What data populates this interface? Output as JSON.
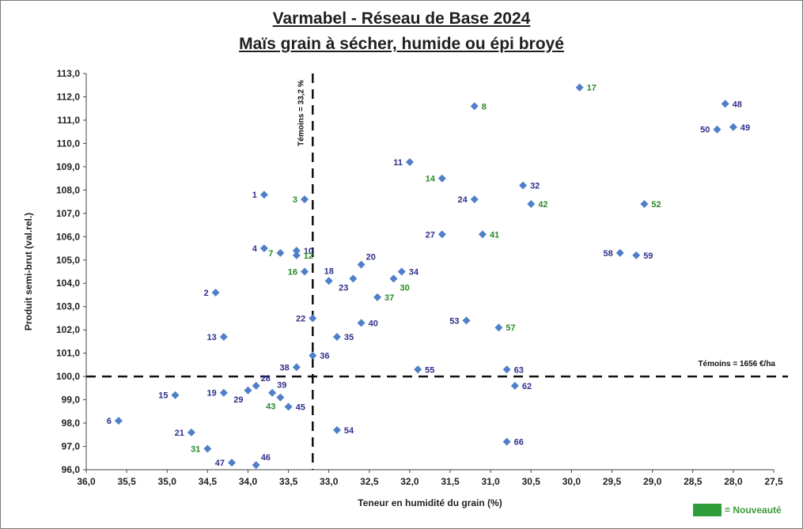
{
  "title": "Varmabel - Réseau de Base 2024",
  "subtitle": "Maïs grain à sécher, humide ou épi broyé",
  "legend": {
    "label": "= Nouveauté",
    "color": "#2f9e3a"
  },
  "chart_data": {
    "type": "scatter",
    "title": "Varmabel - Réseau de Base 2024",
    "subtitle": "Maïs grain à sécher, humide ou épi broyé",
    "xlabel": "Teneur en humidité du grain (%)",
    "ylabel": "Produit semi-brut (val.rel.)",
    "xlim": [
      36.0,
      27.5
    ],
    "x_reversed": true,
    "ylim": [
      96.0,
      113.0
    ],
    "x_ticks": [
      "36,0",
      "35,5",
      "35,0",
      "34,5",
      "34,0",
      "33,5",
      "33,0",
      "32,5",
      "32,0",
      "31,5",
      "31,0",
      "30,5",
      "30,0",
      "29,5",
      "29,0",
      "28,5",
      "28,0",
      "27,5"
    ],
    "y_ticks": [
      "96,0",
      "97,0",
      "98,0",
      "99,0",
      "100,0",
      "101,0",
      "102,0",
      "103,0",
      "104,0",
      "105,0",
      "106,0",
      "107,0",
      "108,0",
      "109,0",
      "110,0",
      "111,0",
      "112,0",
      "113,0"
    ],
    "grid": false,
    "marker_color": "#4f7fc8",
    "label_colors": {
      "standard": "#2e2f8c",
      "new": "#2a8a2a"
    },
    "reference_lines": [
      {
        "axis": "x",
        "value": 33.2,
        "label": "Témoins = 33,2 %"
      },
      {
        "axis": "y",
        "value": 100.0,
        "label": "Témoins = 1656 €/ha"
      }
    ],
    "points": [
      {
        "label": "1",
        "x": 33.8,
        "y": 107.8,
        "new": false,
        "pos": "left"
      },
      {
        "label": "2",
        "x": 34.4,
        "y": 103.6,
        "new": false,
        "pos": "left"
      },
      {
        "label": "3",
        "x": 33.3,
        "y": 107.6,
        "new": true,
        "pos": "left"
      },
      {
        "label": "4",
        "x": 33.8,
        "y": 105.5,
        "new": false,
        "pos": "left"
      },
      {
        "label": "6",
        "x": 35.6,
        "y": 98.1,
        "new": false,
        "pos": "left"
      },
      {
        "label": "7",
        "x": 33.6,
        "y": 105.3,
        "new": true,
        "pos": "left"
      },
      {
        "label": "8",
        "x": 31.2,
        "y": 111.6,
        "new": true,
        "pos": "right"
      },
      {
        "label": "10",
        "x": 33.4,
        "y": 105.4,
        "new": false,
        "pos": "right"
      },
      {
        "label": "11",
        "x": 32.0,
        "y": 109.2,
        "new": false,
        "pos": "left"
      },
      {
        "label": "12",
        "x": 33.4,
        "y": 105.2,
        "new": true,
        "pos": "right"
      },
      {
        "label": "13",
        "x": 34.3,
        "y": 101.7,
        "new": false,
        "pos": "left"
      },
      {
        "label": "14",
        "x": 31.6,
        "y": 108.5,
        "new": true,
        "pos": "left"
      },
      {
        "label": "15",
        "x": 34.9,
        "y": 99.2,
        "new": false,
        "pos": "left"
      },
      {
        "label": "16",
        "x": 33.3,
        "y": 104.5,
        "new": true,
        "pos": "left"
      },
      {
        "label": "17",
        "x": 29.9,
        "y": 112.4,
        "new": true,
        "pos": "right"
      },
      {
        "label": "18",
        "x": 33.0,
        "y": 104.1,
        "new": false,
        "pos": "up"
      },
      {
        "label": "19",
        "x": 34.3,
        "y": 99.3,
        "new": false,
        "pos": "left"
      },
      {
        "label": "20",
        "x": 32.6,
        "y": 104.8,
        "new": false,
        "pos": "upright"
      },
      {
        "label": "21",
        "x": 34.7,
        "y": 97.6,
        "new": false,
        "pos": "left"
      },
      {
        "label": "22",
        "x": 33.2,
        "y": 102.5,
        "new": false,
        "pos": "left"
      },
      {
        "label": "23",
        "x": 32.7,
        "y": 104.2,
        "new": false,
        "pos": "down"
      },
      {
        "label": "24",
        "x": 31.2,
        "y": 107.6,
        "new": false,
        "pos": "left"
      },
      {
        "label": "27",
        "x": 31.6,
        "y": 106.1,
        "new": false,
        "pos": "left"
      },
      {
        "label": "28",
        "x": 33.9,
        "y": 99.6,
        "new": false,
        "pos": "upright"
      },
      {
        "label": "29",
        "x": 34.0,
        "y": 99.4,
        "new": false,
        "pos": "down"
      },
      {
        "label": "30",
        "x": 32.2,
        "y": 104.2,
        "new": true,
        "pos": "downright"
      },
      {
        "label": "31",
        "x": 34.5,
        "y": 96.9,
        "new": true,
        "pos": "left"
      },
      {
        "label": "32",
        "x": 30.6,
        "y": 108.2,
        "new": false,
        "pos": "right"
      },
      {
        "label": "34",
        "x": 32.1,
        "y": 104.5,
        "new": false,
        "pos": "right"
      },
      {
        "label": "35",
        "x": 32.9,
        "y": 101.7,
        "new": false,
        "pos": "right"
      },
      {
        "label": "36",
        "x": 33.2,
        "y": 100.9,
        "new": false,
        "pos": "right"
      },
      {
        "label": "37",
        "x": 32.4,
        "y": 103.4,
        "new": true,
        "pos": "right"
      },
      {
        "label": "38",
        "x": 33.4,
        "y": 100.4,
        "new": false,
        "pos": "left"
      },
      {
        "label": "39",
        "x": 33.7,
        "y": 99.3,
        "new": false,
        "pos": "upright"
      },
      {
        "label": "40",
        "x": 32.6,
        "y": 102.3,
        "new": false,
        "pos": "right"
      },
      {
        "label": "41",
        "x": 31.1,
        "y": 106.1,
        "new": true,
        "pos": "right"
      },
      {
        "label": "42",
        "x": 30.5,
        "y": 107.4,
        "new": true,
        "pos": "right"
      },
      {
        "label": "43",
        "x": 33.6,
        "y": 99.1,
        "new": true,
        "pos": "downleft"
      },
      {
        "label": "45",
        "x": 33.5,
        "y": 98.7,
        "new": false,
        "pos": "right"
      },
      {
        "label": "46",
        "x": 33.9,
        "y": 96.2,
        "new": false,
        "pos": "upright"
      },
      {
        "label": "47",
        "x": 34.2,
        "y": 96.3,
        "new": false,
        "pos": "left"
      },
      {
        "label": "48",
        "x": 28.1,
        "y": 111.7,
        "new": false,
        "pos": "right"
      },
      {
        "label": "49",
        "x": 28.0,
        "y": 110.7,
        "new": false,
        "pos": "right"
      },
      {
        "label": "50",
        "x": 28.2,
        "y": 110.6,
        "new": false,
        "pos": "left"
      },
      {
        "label": "52",
        "x": 29.1,
        "y": 107.4,
        "new": true,
        "pos": "right"
      },
      {
        "label": "53",
        "x": 31.3,
        "y": 102.4,
        "new": false,
        "pos": "left"
      },
      {
        "label": "54",
        "x": 32.9,
        "y": 97.7,
        "new": false,
        "pos": "right"
      },
      {
        "label": "55",
        "x": 31.9,
        "y": 100.3,
        "new": false,
        "pos": "right"
      },
      {
        "label": "57",
        "x": 30.9,
        "y": 102.1,
        "new": true,
        "pos": "right"
      },
      {
        "label": "58",
        "x": 29.4,
        "y": 105.3,
        "new": false,
        "pos": "left"
      },
      {
        "label": "59",
        "x": 29.2,
        "y": 105.2,
        "new": false,
        "pos": "right"
      },
      {
        "label": "62",
        "x": 30.7,
        "y": 99.6,
        "new": false,
        "pos": "right"
      },
      {
        "label": "63",
        "x": 30.8,
        "y": 100.3,
        "new": false,
        "pos": "right"
      },
      {
        "label": "66",
        "x": 30.8,
        "y": 97.2,
        "new": false,
        "pos": "right"
      }
    ]
  }
}
